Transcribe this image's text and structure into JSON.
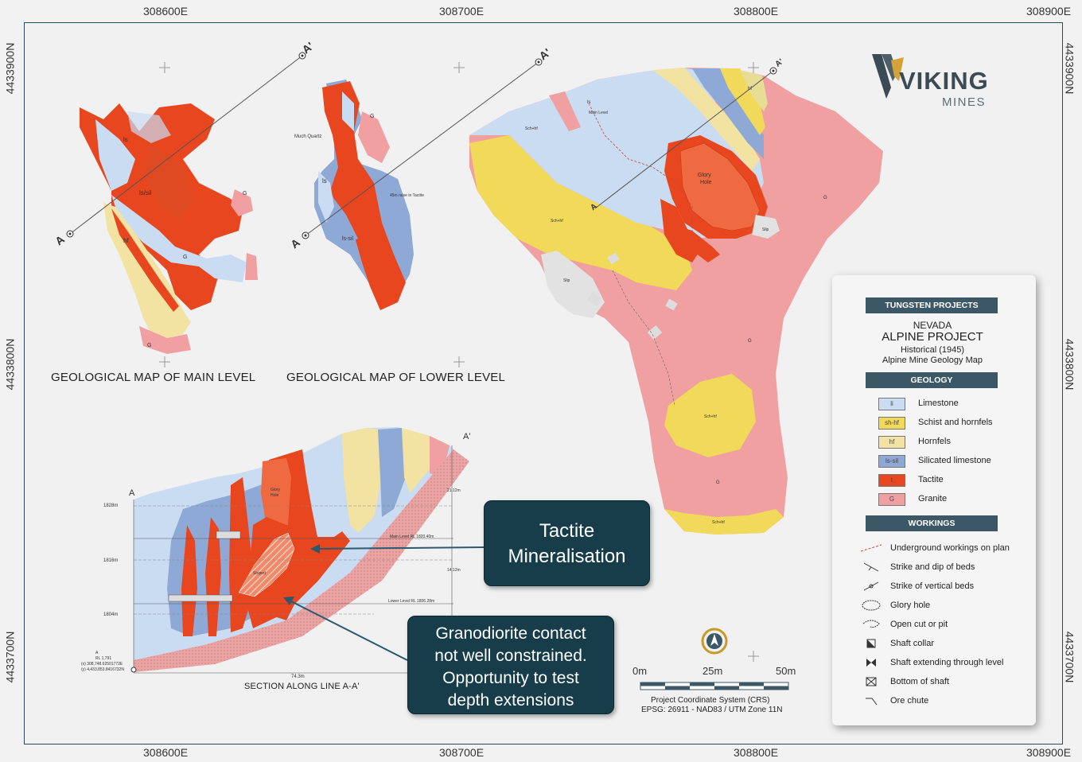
{
  "coords": {
    "top": [
      "308600E",
      "308700E",
      "308800E",
      "308900E"
    ],
    "bottom": [
      "308600E",
      "308700E",
      "308800E",
      "308900E"
    ],
    "left": [
      "4433900N",
      "4433800N",
      "4433700N"
    ],
    "right": [
      "4433900N",
      "4433800N",
      "4433700N"
    ]
  },
  "logo": {
    "brand": "VIKING",
    "sub": "MINES"
  },
  "maps": {
    "main_title": "GEOLOGICAL MAP OF MAIN LEVEL",
    "lower_title": "GEOLOGICAL MAP OF LOWER LEVEL",
    "section_title": "SECTION ALONG LINE A-A'",
    "line_a": "A",
    "line_a_prime": "A'"
  },
  "plan_labels": {
    "glory_hole": [
      "Glory",
      "Hole"
    ],
    "main_level": "Main Level",
    "sch_hf": "Sch+hf",
    "slip": "Slip",
    "g": "G",
    "ls": "ls",
    "t": "t",
    "hf": "hf"
  },
  "lower_labels": {
    "much_quartz": "Much Quartz",
    "raise": "45m raise in Tactite"
  },
  "section": {
    "elevations": [
      "1828m",
      "1816m",
      "1804m"
    ],
    "main_level": "Main Level RL 1820.40m",
    "lower_level": "Lower Level RL 1806.28m",
    "dim_top": "21.12m",
    "dim_mid": "14.12m",
    "width": "74.3m",
    "origin": [
      "A",
      "RL 1,791",
      "(x) 308,748.62501772E",
      "(y) 4,433,853.8416732N"
    ],
    "glory_hole": [
      "Glory",
      "Hole"
    ],
    "stoped": "Stoped"
  },
  "callouts": {
    "tactite": [
      "Tactite",
      "Mineralisation"
    ],
    "granodiorite": [
      "Granodiorite contact",
      "not well constrained.",
      "Opportunity to test",
      "depth extensions"
    ]
  },
  "scale": {
    "ticks": [
      "0m",
      "25m",
      "50m"
    ],
    "crs": "Project Coordinate System (CRS)",
    "epsg": "EPSG: 26911 - NAD83 / UTM Zone 11N"
  },
  "legend": {
    "header": "TUNGSTEN PROJECTS",
    "state": "NEVADA",
    "project": "ALPINE PROJECT",
    "historical": "Historical (1945)",
    "map_name": "Alpine Mine Geology Map",
    "geology_header": "GEOLOGY",
    "geology": [
      {
        "code": "li",
        "label": "Limestone",
        "color": "#c9dcf2"
      },
      {
        "code": "sh-hf",
        "label": "Schist and hornfels",
        "color": "#f1d95a"
      },
      {
        "code": "hf",
        "label": "Hornfels",
        "color": "#f3e3a3"
      },
      {
        "code": "ls-sil",
        "label": "Silicated limestone",
        "color": "#8ea9d6"
      },
      {
        "code": "t",
        "label": "Tactite",
        "color": "#e8461f"
      },
      {
        "code": "G",
        "label": "Granite",
        "color": "#f0a0a0"
      }
    ],
    "workings_header": "WORKINGS",
    "workings": [
      {
        "label": "Underground workings on plan",
        "icon": "dashed-line-icon"
      },
      {
        "label": "Strike and dip of beds",
        "icon": "strike-dip-icon"
      },
      {
        "label": "Strike of vertical beds",
        "icon": "strike-vertical-icon"
      },
      {
        "label": "Glory hole",
        "icon": "glory-hole-icon"
      },
      {
        "label": "Open cut or pit",
        "icon": "open-cut-icon"
      },
      {
        "label": "Shaft collar",
        "icon": "shaft-collar-icon"
      },
      {
        "label": "Shaft extending through level",
        "icon": "shaft-through-icon"
      },
      {
        "label": "Bottom of shaft",
        "icon": "bottom-shaft-icon"
      },
      {
        "label": "Ore chute",
        "icon": "ore-chute-icon"
      }
    ]
  }
}
